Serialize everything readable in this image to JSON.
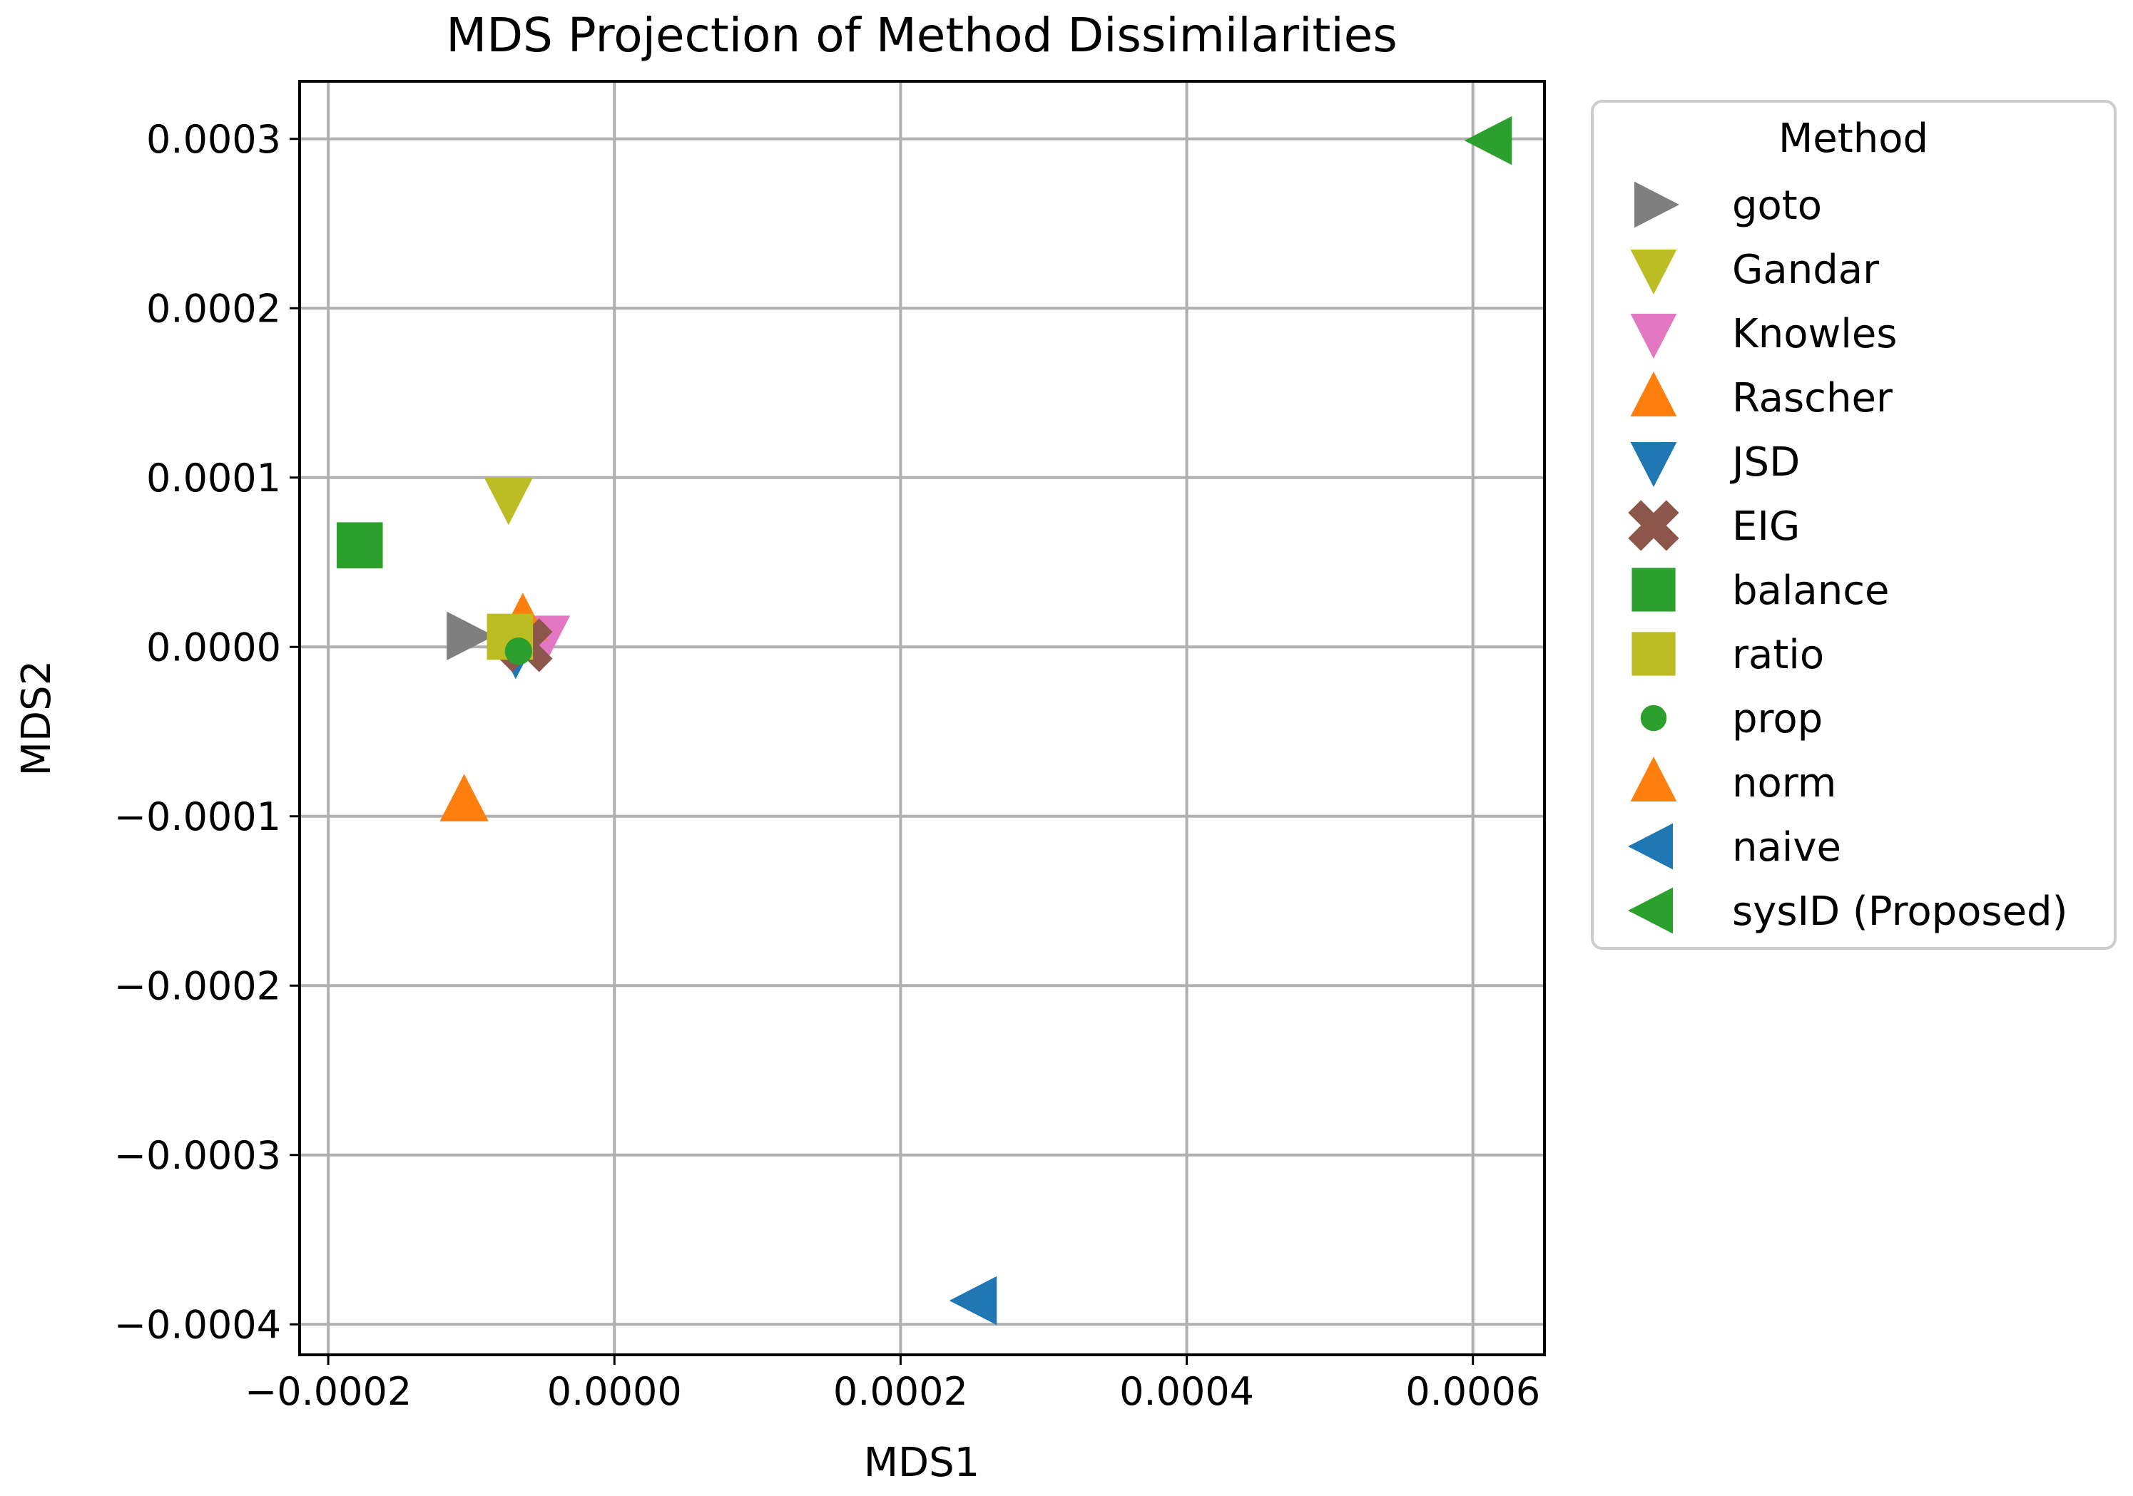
{
  "chart_data": {
    "type": "scatter",
    "title": "MDS Projection of Method Dissimilarities",
    "xlabel": "MDS1",
    "ylabel": "MDS2",
    "xlim": [
      -0.00022,
      0.00065
    ],
    "ylim": [
      -0.000418,
      0.000334
    ],
    "grid": true,
    "xticks": [
      -0.0002,
      0.0,
      0.0002,
      0.0004,
      0.0006
    ],
    "xtick_labels": [
      "−0.0002",
      "0.0000",
      "0.0002",
      "0.0004",
      "0.0006"
    ],
    "yticks": [
      0.0003,
      0.0002,
      0.0001,
      0.0,
      -0.0001,
      -0.0002,
      -0.0003,
      -0.0004
    ],
    "ytick_labels": [
      "0.0003",
      "0.0002",
      "0.0001",
      "0.0000",
      "−0.0001",
      "−0.0002",
      "−0.0003",
      "−0.0004"
    ],
    "legend": {
      "title": "Method",
      "placement": "outside-right",
      "entries": [
        "goto",
        "Gandar",
        "Knowles",
        "Rascher",
        "JSD",
        "EIG",
        "balance",
        "ratio",
        "prop",
        "norm",
        "naive",
        "sysID (Proposed)"
      ]
    },
    "series": [
      {
        "name": "goto",
        "marker": "triangle-right",
        "color": "#7f7f7f",
        "x": -0.000103,
        "y": 6.5e-06
      },
      {
        "name": "Gandar",
        "marker": "triangle-down",
        "color": "#bcbd22",
        "x": -7.4e-05,
        "y": 8.8e-05
      },
      {
        "name": "Knowles",
        "marker": "triangle-down",
        "color": "#e377c2",
        "x": -4.8e-05,
        "y": 6.5e-06
      },
      {
        "name": "Rascher",
        "marker": "triangle-up",
        "color": "#ff7f0e",
        "x": -6.4e-05,
        "y": 1.6e-05
      },
      {
        "name": "JSD",
        "marker": "triangle-down",
        "color": "#1f77b4",
        "x": -6.9e-05,
        "y": -3e-06
      },
      {
        "name": "EIG",
        "marker": "x-filled",
        "color": "#8c564b",
        "x": -6.2e-05,
        "y": 1e-06
      },
      {
        "name": "balance",
        "marker": "square",
        "color": "#2ca02c",
        "x": -0.000178,
        "y": 6e-05
      },
      {
        "name": "ratio",
        "marker": "square",
        "color": "#bcbd22",
        "x": -7.3e-05,
        "y": 6e-06
      },
      {
        "name": "prop",
        "marker": "circle",
        "color": "#2ca02c",
        "x": -6.7e-05,
        "y": -2.5e-06
      },
      {
        "name": "norm",
        "marker": "triangle-up",
        "color": "#ff7f0e",
        "x": -0.000105,
        "y": -9.1e-05
      },
      {
        "name": "naive",
        "marker": "triangle-left",
        "color": "#1f77b4",
        "x": 0.000253,
        "y": -0.000386
      },
      {
        "name": "sysID (Proposed)",
        "marker": "triangle-left",
        "color": "#2ca02c",
        "x": 0.000613,
        "y": 0.000299
      }
    ]
  }
}
